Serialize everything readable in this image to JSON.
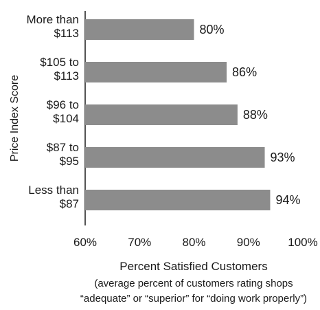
{
  "chart_data": {
    "type": "bar",
    "orientation": "horizontal",
    "categories": [
      [
        "More than",
        "$113"
      ],
      [
        "$105 to",
        "$113"
      ],
      [
        "$96 to",
        "$104"
      ],
      [
        "$87 to",
        "$95"
      ],
      [
        "Less than",
        "$87"
      ]
    ],
    "values": [
      80,
      86,
      88,
      93,
      94
    ],
    "value_labels": [
      "80%",
      "86%",
      "88%",
      "93%",
      "94%"
    ],
    "xlim": [
      60,
      100
    ],
    "x_ticks": [
      60,
      70,
      80,
      90,
      100
    ],
    "x_tick_labels": [
      "60%",
      "70%",
      "80%",
      "90%",
      "100%"
    ],
    "xlabel": "Percent Satisfied Customers",
    "xlabel_note": [
      "(average percent of customers rating shops",
      "“adequate” or “superior” for “doing work properly”)"
    ],
    "ylabel": "Price Index Score",
    "bar_color": "#8c8c8c",
    "grid": false,
    "legend": "none"
  }
}
